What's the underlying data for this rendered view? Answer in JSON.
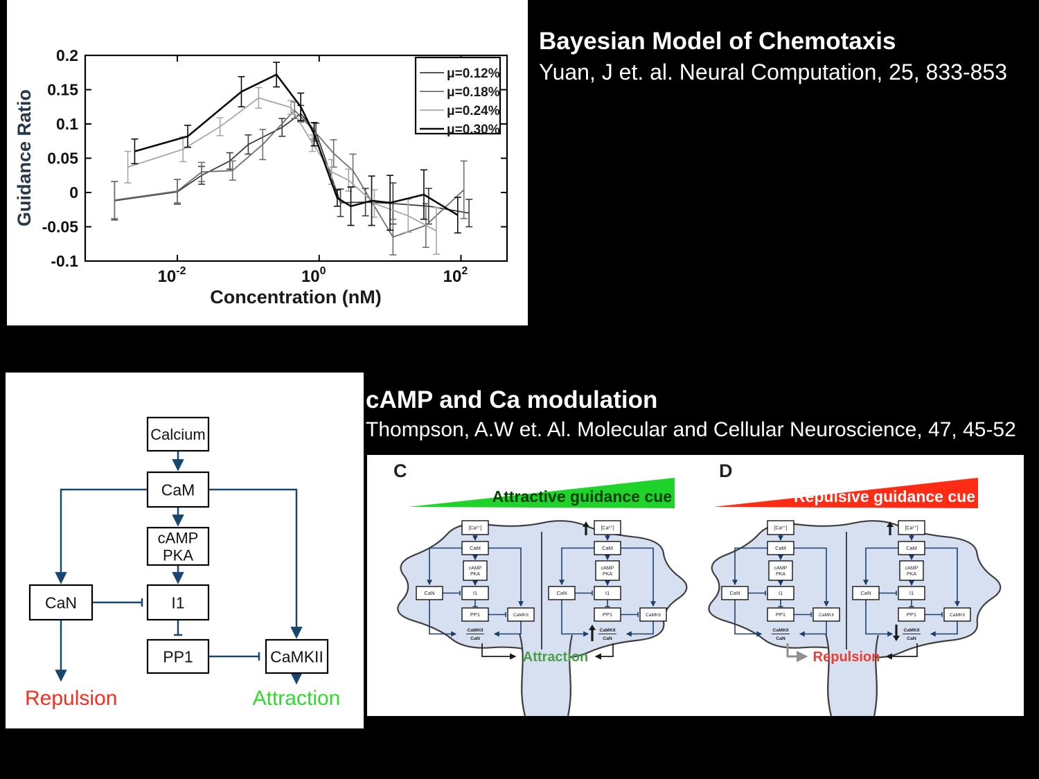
{
  "ref1": {
    "title": "Bayesian Model of Chemotaxis",
    "citation": "Yuan, J et. al. Neural Computation, 25, 833-853"
  },
  "ref2": {
    "title": "cAMP and Ca modulation",
    "citation": "Thompson, A.W et. Al. Molecular and Cellular Neuroscience, 47, 45-52"
  },
  "chart_data": {
    "type": "line",
    "title": "",
    "xlabel": "Concentration (nM)",
    "ylabel": "Guidance Ratio",
    "x_scale": "log10",
    "xlim_log10": [
      -3.3,
      2.65
    ],
    "ylim": [
      -0.1,
      0.2
    ],
    "x_tick_base": "10",
    "x_tick_exponents": [
      "-2",
      "0",
      "2"
    ],
    "x_tick_log10": [
      -2,
      0,
      2
    ],
    "y_tick_labels": [
      "0.2",
      "0.15",
      "0.1",
      "0.05",
      "0",
      "-0.05",
      "-0.1"
    ],
    "y_tick_values": [
      0.2,
      0.15,
      0.1,
      0.05,
      0,
      -0.05,
      -0.1
    ],
    "grid": false,
    "legend_position": "top-right",
    "series": [
      {
        "name": "μ=0.12%",
        "color": "#3c3c3c",
        "width": 1.8,
        "points": [
          [
            0.0013,
            -0.012,
            0.028
          ],
          [
            0.01,
            0.001,
            0.018
          ],
          [
            0.022,
            0.025,
            0.013
          ],
          [
            0.055,
            0.046,
            0.012
          ],
          [
            0.1,
            0.07,
            0.014
          ],
          [
            0.3,
            0.095,
            0.013
          ],
          [
            0.55,
            0.115,
            0.012
          ],
          [
            0.9,
            0.088,
            0.013
          ],
          [
            2,
            -0.015,
            0.02
          ],
          [
            4.5,
            -0.014,
            0.02
          ],
          [
            11,
            -0.016,
            0.03
          ],
          [
            35,
            -0.02,
            0.026
          ],
          [
            130,
            -0.03,
            0.02
          ]
        ]
      },
      {
        "name": "μ=0.18%",
        "color": "#6f6f6f",
        "width": 1.8,
        "points": [
          [
            0.0013,
            -0.011,
            0.027
          ],
          [
            0.01,
            0.002,
            0.017
          ],
          [
            0.022,
            0.03,
            0.014
          ],
          [
            0.06,
            0.032,
            0.014
          ],
          [
            0.16,
            0.07,
            0.022
          ],
          [
            0.45,
            0.12,
            0.012
          ],
          [
            0.85,
            0.09,
            0.012
          ],
          [
            1.6,
            0.057,
            0.02
          ],
          [
            3,
            0.032,
            0.024
          ],
          [
            11,
            -0.065,
            0.026
          ],
          [
            32,
            -0.048,
            0.032
          ],
          [
            110,
            0.004,
            0.042
          ]
        ]
      },
      {
        "name": "μ=0.24%",
        "color": "#a6a6a6",
        "width": 1.8,
        "points": [
          [
            0.002,
            0.037,
            0.023
          ],
          [
            0.012,
            0.063,
            0.018
          ],
          [
            0.04,
            0.096,
            0.013
          ],
          [
            0.14,
            0.138,
            0.015
          ],
          [
            0.4,
            0.124,
            0.01
          ],
          [
            0.8,
            0.072,
            0.012
          ],
          [
            1.5,
            0.03,
            0.018
          ],
          [
            2.6,
            0.018,
            0.016
          ],
          [
            6,
            -0.016,
            0.02
          ],
          [
            18,
            -0.034,
            0.024
          ],
          [
            45,
            -0.056,
            0.034
          ]
        ]
      },
      {
        "name": "μ=0.30%",
        "color": "#0a0a0a",
        "width": 2.6,
        "points": [
          [
            0.0025,
            0.06,
            0.018
          ],
          [
            0.014,
            0.082,
            0.016
          ],
          [
            0.08,
            0.147,
            0.022
          ],
          [
            0.25,
            0.172,
            0.018
          ],
          [
            0.55,
            0.125,
            0.02
          ],
          [
            0.85,
            0.085,
            0.017
          ],
          [
            1.8,
            -0.008,
            0.012
          ],
          [
            2.8,
            -0.02,
            0.028
          ],
          [
            5.5,
            -0.012,
            0.036
          ],
          [
            10,
            -0.015,
            0.04
          ],
          [
            30,
            -0.003,
            0.036
          ],
          [
            90,
            -0.033,
            0.026
          ]
        ]
      }
    ]
  },
  "pathway": {
    "nodes": {
      "calcium": "Calcium",
      "cam": "CaM",
      "camp_line1": "cAMP",
      "camp_line2": "PKA",
      "can": "CaN",
      "i1": "I1",
      "pp1": "PP1",
      "camkii": "CaMKII"
    },
    "outcomes": {
      "repulsion": "Repulsion",
      "attraction": "Attraction"
    },
    "colors": {
      "arrow": "#17466e",
      "repulsion": "#fa2b1d",
      "attraction": "#2edb2e",
      "box_border": "#000000"
    }
  },
  "cd": {
    "panel_c": {
      "label": "C",
      "cue": "Attractive guidance cue",
      "outcome": "Attraction",
      "cue_color": "#1fd32a",
      "cue_text_color": "#063f06",
      "outcome_color": "#4a9e4a"
    },
    "panel_d": {
      "label": "D",
      "cue": "Repulsive guidance cue",
      "outcome": "Repulsion",
      "cue_color": "#ff2b14",
      "cue_text_color": "#ffffff",
      "outcome_color": "#f03b30"
    },
    "mini": {
      "ca": "[Ca²⁺]",
      "cam": "CaM",
      "camp": "cAMP",
      "pka": "PKA",
      "can": "CaN",
      "i1": "I1",
      "pp1": "PP1",
      "camkii": "CaMKII",
      "ratio_top": "CaMKII",
      "ratio_bot": "CaN"
    },
    "colors": {
      "cell_fill": "#d6e0f0",
      "cell_stroke": "#3f3f3f",
      "arrow": "#1c3f6e"
    }
  }
}
